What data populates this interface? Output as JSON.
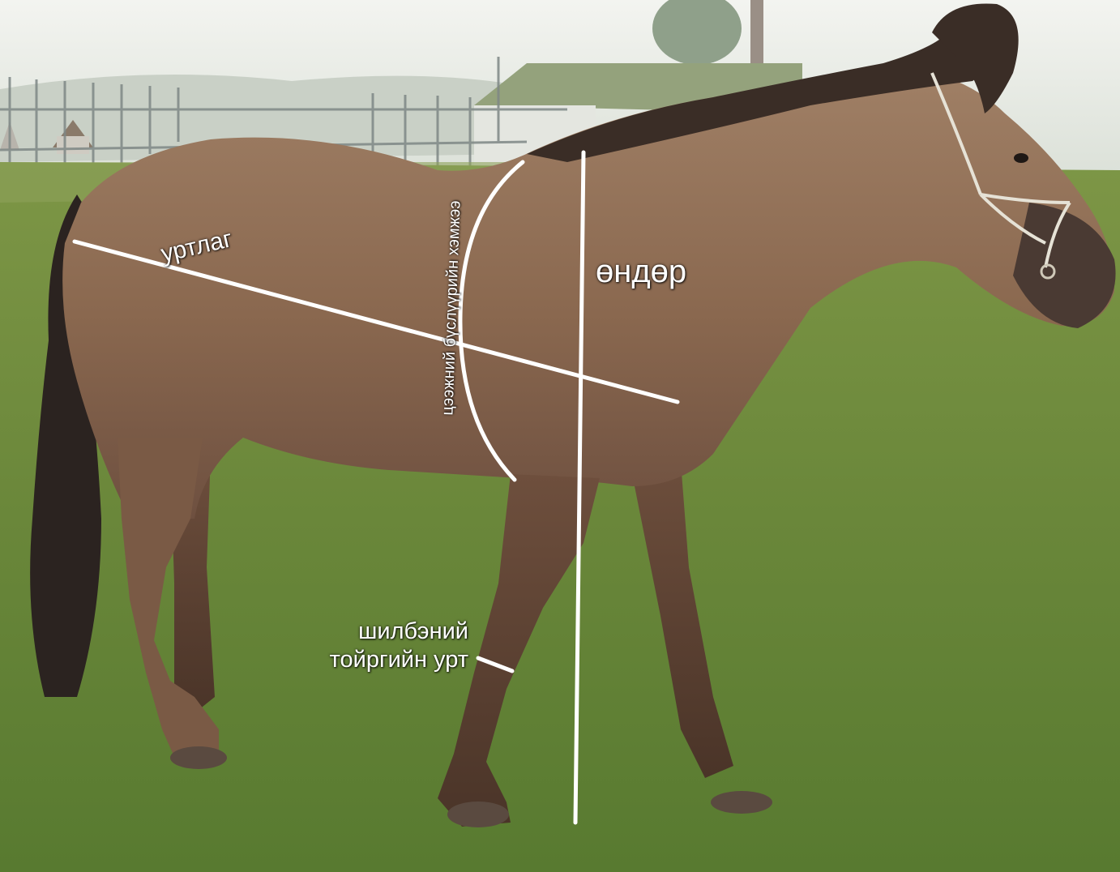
{
  "photo": {
    "subject": "horse",
    "colors": {
      "sky": "#e9ece6",
      "grass": "#6f8b3d",
      "horse_coat": "#8c6a52",
      "mane_tail": "#2c2420",
      "measure_lines": "#ffffff"
    }
  },
  "labels": {
    "length": "уртлаг",
    "height": "өндөр",
    "girth": "цээжний бүслүүрийн хэмжээ",
    "cannon_line1": "шилбэний",
    "cannon_line2": "тойргийн урт"
  }
}
